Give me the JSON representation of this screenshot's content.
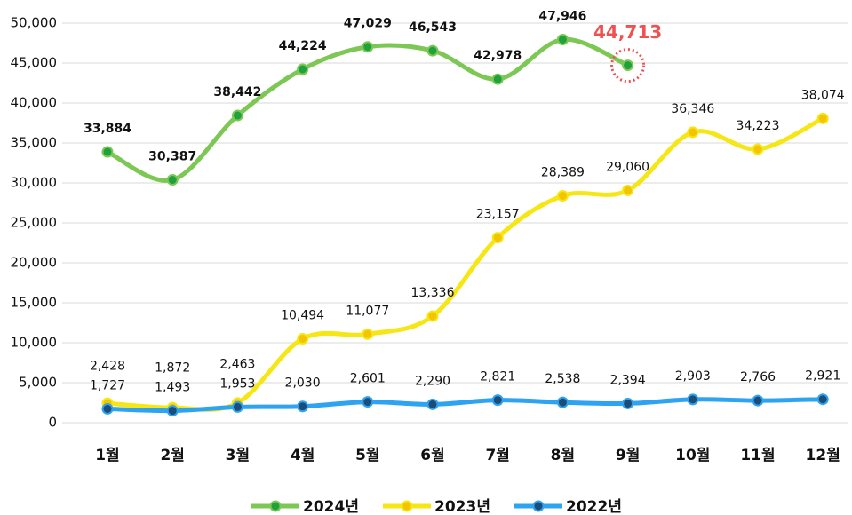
{
  "chart_data": {
    "type": "line",
    "categories": [
      "1월",
      "2월",
      "3월",
      "4월",
      "5월",
      "6월",
      "7월",
      "8월",
      "9월",
      "10월",
      "11월",
      "12월"
    ],
    "series": [
      {
        "name": "2024년",
        "color": "#7dc855",
        "marker": "#1fa23c",
        "values": [
          33884,
          30387,
          38442,
          44224,
          47029,
          46543,
          42978,
          47946,
          44713,
          null,
          null,
          null
        ],
        "value_labels": [
          "33,884",
          "30,387",
          "38,442",
          "44,224",
          "47,029",
          "46,543",
          "42,978",
          "47,946",
          "44,713",
          null,
          null,
          null
        ]
      },
      {
        "name": "2023년",
        "color": "#f5e614",
        "marker": "#f5c400",
        "values": [
          2428,
          1872,
          2463,
          10494,
          11077,
          13336,
          23157,
          28389,
          29060,
          36346,
          34223,
          38074
        ],
        "value_labels": [
          "2,428",
          "1,872",
          "2,463",
          "10,494",
          "11,077",
          "13,336",
          "23,157",
          "28,389",
          "29,060",
          "36,346",
          "34,223",
          "38,074"
        ]
      },
      {
        "name": "2022년",
        "color": "#2ea3f2",
        "marker": "#1b4d78",
        "values": [
          1727,
          1493,
          1953,
          2030,
          2601,
          2290,
          2821,
          2538,
          2394,
          2903,
          2766,
          2921
        ],
        "value_labels": [
          "1,727",
          "1,493",
          "1,953",
          "2,030",
          "2,601",
          "2,290",
          "2,821",
          "2,538",
          "2,394",
          "2,903",
          "2,766",
          "2,921"
        ]
      }
    ],
    "ylim": [
      0,
      50000
    ],
    "yticks": [
      0,
      {
        "value": 5000,
        "label": "5,000"
      },
      {
        "value": 10000,
        "label": "10,000"
      },
      {
        "value": 15000,
        "label": "15,000"
      },
      {
        "value": 20000,
        "label": "20,000"
      },
      {
        "value": 25000,
        "label": "25,000"
      },
      {
        "value": 30000,
        "label": "30,000"
      },
      {
        "value": 35000,
        "label": "35,000"
      },
      {
        "value": 40000,
        "label": "40,000"
      },
      {
        "value": 45000,
        "label": "45,000"
      },
      {
        "value": 50000,
        "label": "50,000"
      }
    ],
    "grid": true,
    "legend": "bottom",
    "highlight_color": "#f05050"
  }
}
